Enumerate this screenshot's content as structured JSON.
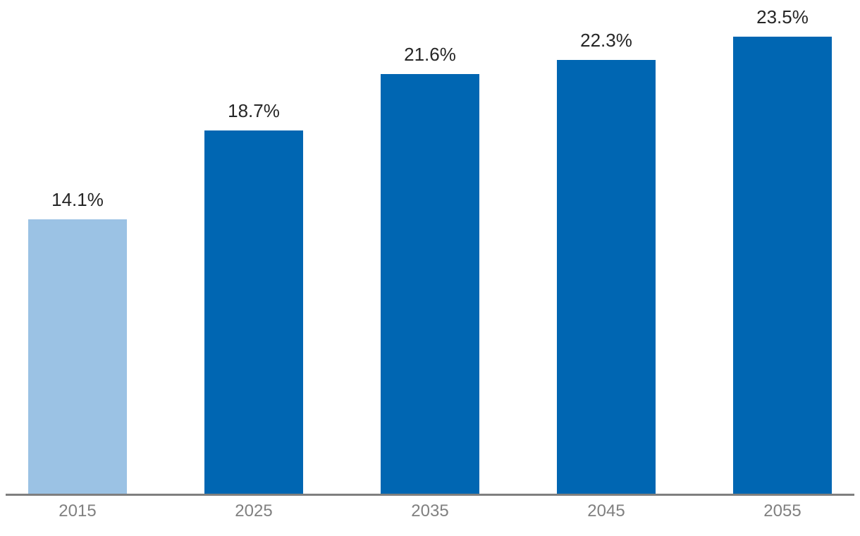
{
  "chart_data": {
    "type": "bar",
    "title": "",
    "xlabel": "",
    "ylabel": "",
    "categories": [
      "2015",
      "2025",
      "2035",
      "2045",
      "2055"
    ],
    "values": [
      14.1,
      18.7,
      21.6,
      22.3,
      23.5
    ],
    "value_labels": [
      "14.1%",
      "18.7%",
      "21.6%",
      "22.3%",
      "23.5%"
    ],
    "ylim": [
      0,
      25.4
    ],
    "grid": false,
    "legend": false,
    "highlight_category": "2015",
    "layout": {
      "axis": "x-axis baseline only, no y-axis, no gridlines, value labels above bars"
    },
    "colors": {
      "bar_default": "#0066B2",
      "bar_highlight": "#9BC2E4",
      "value_label": "#262626",
      "axis_label": "#808080",
      "axis_line": "#7F7F7F",
      "background": "#FFFFFF"
    }
  }
}
